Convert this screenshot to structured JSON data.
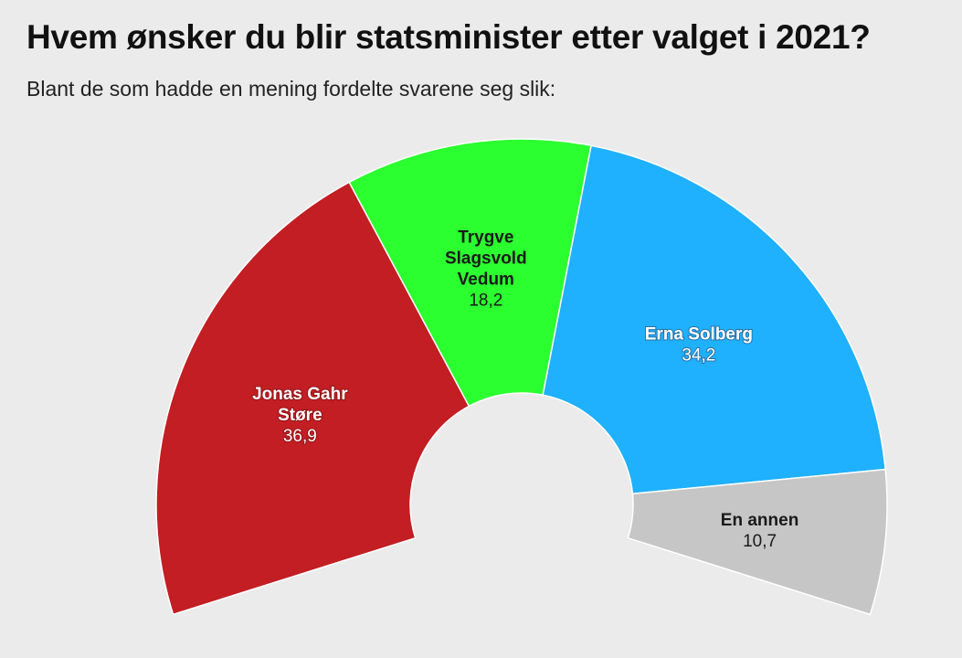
{
  "chart_data": {
    "type": "pie",
    "variant": "partial donut",
    "title": "Hvem ønsker du blir statsminister etter valget i 2021?",
    "subtitle": "Blant de som hadde en mening fordelte svarene seg slik:",
    "slices": [
      {
        "label": "Jonas Gahr Støre",
        "lines": [
          "Jonas Gahr",
          "Støre"
        ],
        "value": 36.9,
        "value_label": "36,9",
        "color": "#c21e23",
        "label_color": "light"
      },
      {
        "label": "Trygve Slagsvold Vedum",
        "lines": [
          "Trygve",
          "Slagsvold",
          "Vedum"
        ],
        "value": 18.2,
        "value_label": "18,2",
        "color": "#2bff2f",
        "label_color": "dark"
      },
      {
        "label": "Erna Solberg",
        "lines": [
          "Erna Solberg"
        ],
        "value": 34.2,
        "value_label": "34,2",
        "color": "#1fb0fe",
        "label_color": "light"
      },
      {
        "label": "En annen",
        "lines": [
          "En annen"
        ],
        "value": 10.7,
        "value_label": "10,7",
        "color": "#c6c6c6",
        "label_color": "dark"
      }
    ]
  }
}
